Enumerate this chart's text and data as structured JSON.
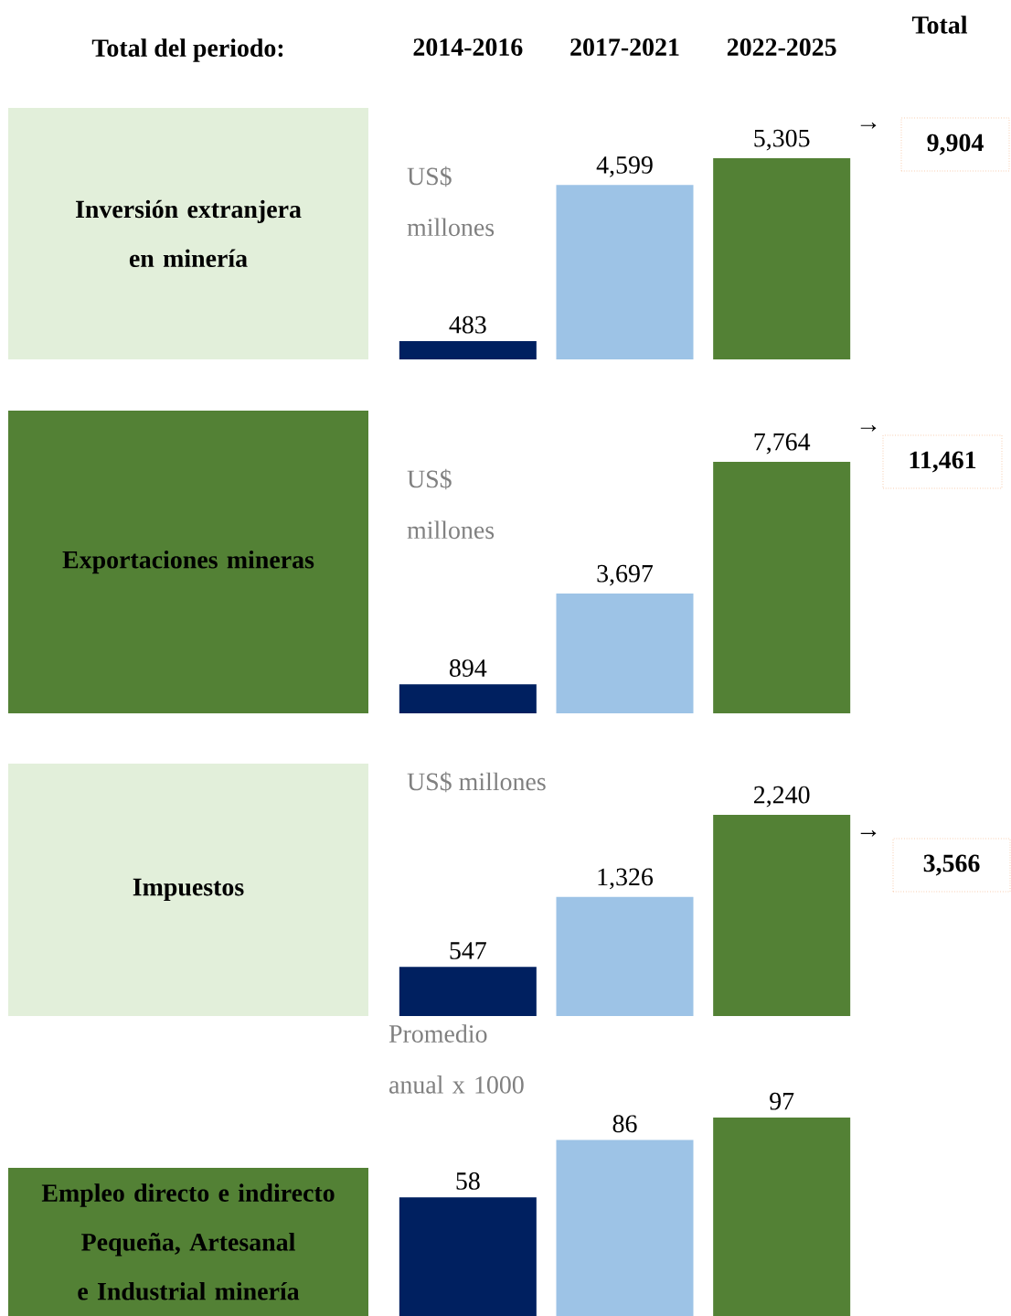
{
  "chart_data": [
    {
      "type": "bar",
      "title": "Inversión extranjera en minería",
      "categories": [
        "2014-2016",
        "2017-2021",
        "2022-2025"
      ],
      "values": [
        483,
        4599,
        5305
      ],
      "value_labels": [
        "483",
        "4,599",
        "5,305"
      ],
      "colors": [
        "#002060",
        "#9dc3e6",
        "#538135"
      ],
      "annotations": [
        "US$ millones",
        "→",
        "9,904",
        "Total del periodo:",
        "Total"
      ]
    },
    {
      "type": "bar",
      "title": "Exportaciones mineras",
      "categories": [
        null,
        null,
        null
      ],
      "values": [
        894,
        3697,
        7764
      ],
      "value_labels": [
        "894",
        "3,697",
        "7,764"
      ],
      "colors": [
        "#002060",
        "#9dc3e6",
        "#538135"
      ],
      "annotations": [
        "US$ millones",
        "→",
        "11,461"
      ]
    },
    {
      "type": "bar",
      "title": "Impuestos",
      "categories": [
        null,
        null,
        null
      ],
      "values": [
        547,
        1326,
        2240
      ],
      "value_labels": [
        "547",
        "1,326",
        "2,240"
      ],
      "colors": [
        "#002060",
        "#9dc3e6",
        "#538135"
      ],
      "annotations": [
        "US$ millones",
        "→",
        "3,566"
      ]
    },
    {
      "type": "bar",
      "title": "Empleo directo e indirecto Pequeña, Artesanal e Industrial  minería",
      "categories": [
        null,
        null,
        null
      ],
      "values": [
        58,
        86,
        97
      ],
      "value_labels": [
        "58",
        "86",
        "97"
      ],
      "colors": [
        "#002060",
        "#9dc3e6",
        "#538135"
      ],
      "annotations": [
        "Promedio anual x 1000"
      ]
    }
  ]
}
